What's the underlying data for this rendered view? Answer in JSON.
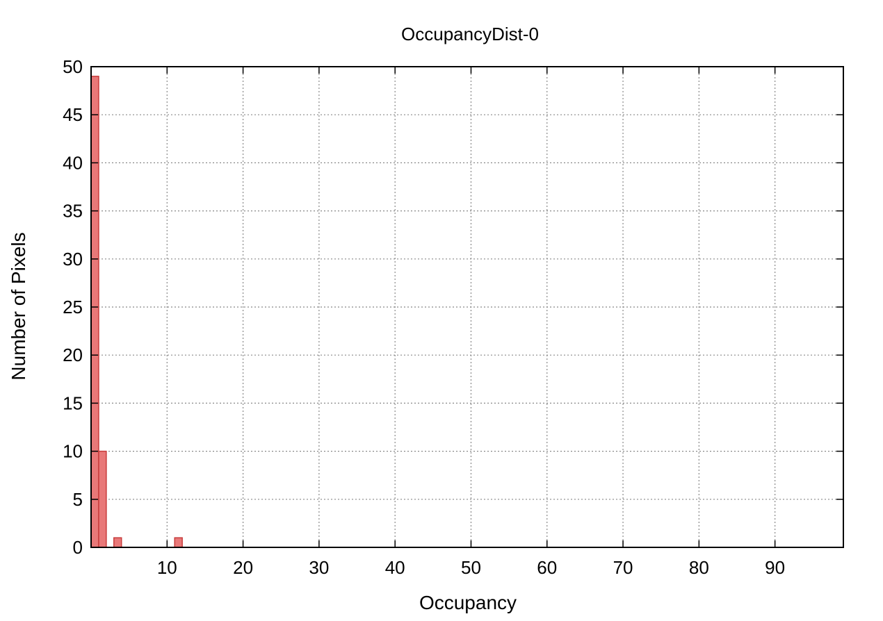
{
  "chart_data": {
    "type": "bar",
    "title": "OccupancyDist-0",
    "xlabel": "Occupancy",
    "ylabel": "Number of Pixels",
    "xlim": [
      0,
      99
    ],
    "ylim": [
      0,
      50
    ],
    "x_ticks": [
      10,
      20,
      30,
      40,
      50,
      60,
      70,
      80,
      90
    ],
    "y_ticks": [
      0,
      5,
      10,
      15,
      20,
      25,
      30,
      35,
      40,
      45,
      50
    ],
    "grid": true,
    "bar_color": "#e87878",
    "bar_edge_color": "#c83c3c",
    "bars": [
      {
        "x": 0,
        "value": 49
      },
      {
        "x": 1,
        "value": 10
      },
      {
        "x": 3,
        "value": 1
      },
      {
        "x": 11,
        "value": 1
      }
    ]
  }
}
